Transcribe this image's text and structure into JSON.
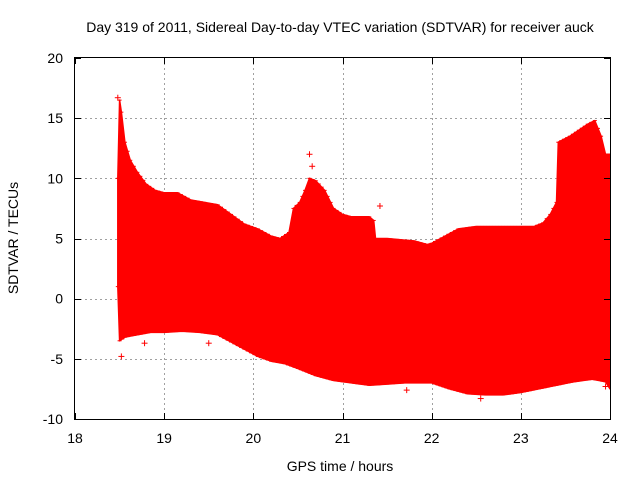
{
  "chart_data": {
    "type": "area",
    "title": "Day 319 of 2011, Sidereal Day-to-day VTEC variation (SDTVAR) for receiver auck",
    "xlabel": "GPS time / hours",
    "ylabel": "SDTVAR / TECUs",
    "xlim": [
      18,
      24
    ],
    "ylim": [
      -10,
      20
    ],
    "xticks": [
      18,
      19,
      20,
      21,
      22,
      23,
      24
    ],
    "yticks": [
      -10,
      -5,
      0,
      5,
      10,
      15,
      20
    ],
    "xtick_labels": [
      "18",
      "19",
      "20",
      "21",
      "22",
      "23",
      "24"
    ],
    "ytick_labels": [
      "-10",
      "-5",
      "0",
      "5",
      "10",
      "15",
      "20"
    ],
    "grid": true,
    "series": [
      {
        "name": "SDTVAR",
        "color": "#ff0000",
        "upper": [
          [
            18.48,
            10.0
          ],
          [
            18.5,
            16.5
          ],
          [
            18.52,
            15.5
          ],
          [
            18.56,
            13.0
          ],
          [
            18.62,
            11.5
          ],
          [
            18.7,
            10.5
          ],
          [
            18.8,
            9.5
          ],
          [
            18.9,
            9.0
          ],
          [
            19.0,
            8.8
          ],
          [
            19.15,
            8.8
          ],
          [
            19.3,
            8.2
          ],
          [
            19.45,
            8.0
          ],
          [
            19.6,
            7.8
          ],
          [
            19.75,
            7.0
          ],
          [
            19.9,
            6.2
          ],
          [
            20.05,
            5.8
          ],
          [
            20.2,
            5.2
          ],
          [
            20.3,
            5.0
          ],
          [
            20.4,
            5.5
          ],
          [
            20.45,
            7.5
          ],
          [
            20.52,
            8.0
          ],
          [
            20.58,
            9.0
          ],
          [
            20.63,
            10.0
          ],
          [
            20.7,
            9.8
          ],
          [
            20.8,
            9.0
          ],
          [
            20.9,
            7.5
          ],
          [
            21.0,
            7.0
          ],
          [
            21.1,
            6.8
          ],
          [
            21.2,
            6.8
          ],
          [
            21.3,
            6.8
          ],
          [
            21.35,
            6.5
          ],
          [
            21.37,
            5.0
          ],
          [
            21.5,
            5.0
          ],
          [
            21.65,
            4.9
          ],
          [
            21.8,
            4.8
          ],
          [
            21.95,
            4.5
          ],
          [
            22.0,
            4.6
          ],
          [
            22.15,
            5.2
          ],
          [
            22.3,
            5.8
          ],
          [
            22.5,
            6.0
          ],
          [
            22.7,
            6.0
          ],
          [
            22.9,
            6.0
          ],
          [
            23.0,
            6.0
          ],
          [
            23.15,
            6.0
          ],
          [
            23.25,
            6.3
          ],
          [
            23.33,
            7.0
          ],
          [
            23.4,
            8.0
          ],
          [
            23.42,
            13.0
          ],
          [
            23.55,
            13.5
          ],
          [
            23.65,
            14.0
          ],
          [
            23.75,
            14.5
          ],
          [
            23.83,
            14.8
          ],
          [
            23.9,
            13.5
          ],
          [
            23.95,
            12.0
          ],
          [
            24.0,
            12.0
          ]
        ],
        "lower": [
          [
            18.48,
            1.0
          ],
          [
            18.5,
            -3.5
          ],
          [
            18.56,
            -3.2
          ],
          [
            18.7,
            -3.0
          ],
          [
            18.85,
            -2.8
          ],
          [
            19.0,
            -2.8
          ],
          [
            19.2,
            -2.7
          ],
          [
            19.4,
            -2.8
          ],
          [
            19.6,
            -3.0
          ],
          [
            19.75,
            -3.6
          ],
          [
            19.9,
            -4.2
          ],
          [
            20.05,
            -4.8
          ],
          [
            20.2,
            -5.2
          ],
          [
            20.35,
            -5.4
          ],
          [
            20.5,
            -5.8
          ],
          [
            20.7,
            -6.4
          ],
          [
            20.9,
            -6.8
          ],
          [
            21.1,
            -7.0
          ],
          [
            21.3,
            -7.2
          ],
          [
            21.5,
            -7.1
          ],
          [
            21.7,
            -7.0
          ],
          [
            21.9,
            -7.0
          ],
          [
            22.0,
            -7.0
          ],
          [
            22.2,
            -7.5
          ],
          [
            22.4,
            -7.9
          ],
          [
            22.6,
            -8.0
          ],
          [
            22.8,
            -8.0
          ],
          [
            23.0,
            -7.8
          ],
          [
            23.2,
            -7.5
          ],
          [
            23.4,
            -7.2
          ],
          [
            23.6,
            -6.9
          ],
          [
            23.8,
            -6.7
          ],
          [
            23.95,
            -6.9
          ],
          [
            24.0,
            -7.5
          ]
        ],
        "outliers": [
          [
            18.48,
            16.7
          ],
          [
            18.52,
            -4.8
          ],
          [
            18.78,
            -3.7
          ],
          [
            19.5,
            -3.7
          ],
          [
            20.63,
            12.0
          ],
          [
            20.66,
            11.0
          ],
          [
            21.42,
            7.7
          ],
          [
            21.72,
            -7.6
          ],
          [
            22.55,
            -8.3
          ],
          [
            23.95,
            -7.3
          ]
        ]
      }
    ]
  }
}
